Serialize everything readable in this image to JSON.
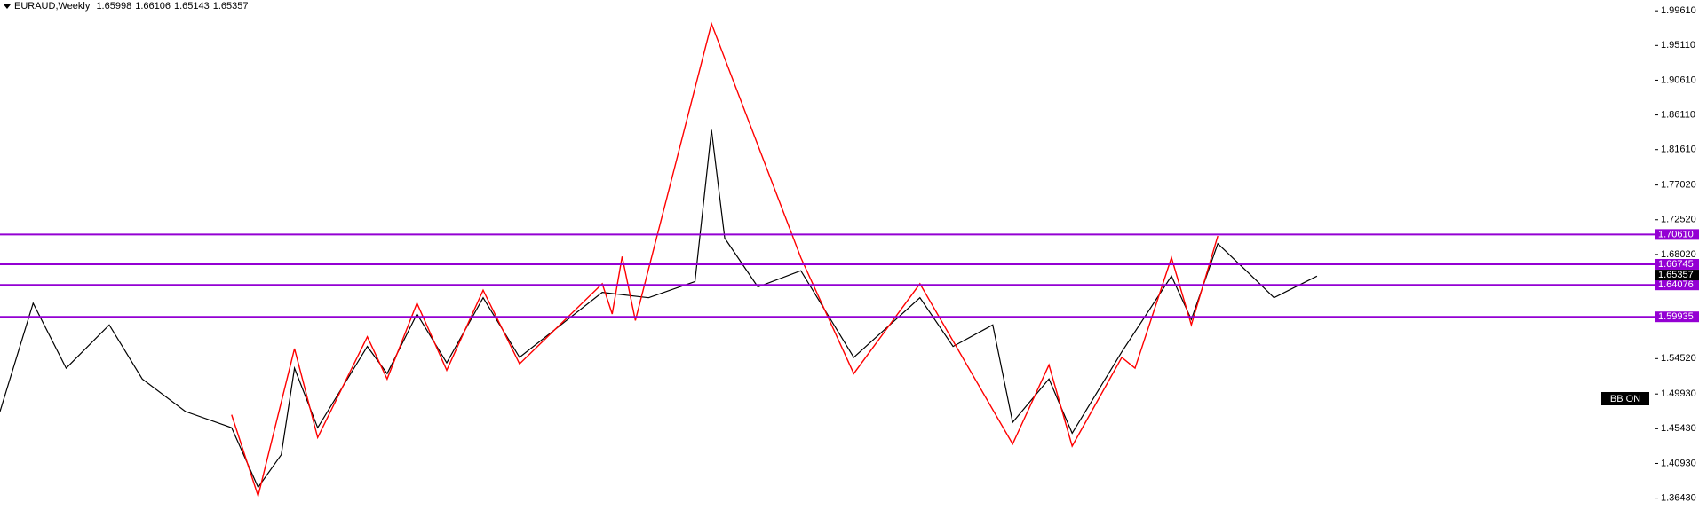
{
  "chart_data": {
    "type": "line",
    "title": "EURAUD,Weekly",
    "quote": {
      "open": 1.65998,
      "high": 1.66106,
      "low": 1.65143,
      "close": 1.65357
    },
    "indicator_label": "BB ON",
    "xlim": [
      0,
      500
    ],
    "ylim": [
      1.3489,
      2.0101
    ],
    "yticks": [
      {
        "value": 1.9961,
        "label": "1.99610"
      },
      {
        "value": 1.9511,
        "label": "1.95110"
      },
      {
        "value": 1.9061,
        "label": "1.90610"
      },
      {
        "value": 1.8611,
        "label": "1.86110"
      },
      {
        "value": 1.8161,
        "label": "1.81610"
      },
      {
        "value": 1.7702,
        "label": "1.77020"
      },
      {
        "value": 1.7252,
        "label": "1.72520"
      },
      {
        "value": 1.6802,
        "label": "1.68020"
      },
      {
        "value": 1.5452,
        "label": "1.54520"
      },
      {
        "value": 1.4993,
        "label": "1.49930"
      },
      {
        "value": 1.4543,
        "label": "1.45430"
      },
      {
        "value": 1.4093,
        "label": "1.40930"
      },
      {
        "value": 1.3643,
        "label": "1.36430"
      }
    ],
    "price_line": {
      "color": "#000000",
      "x": [
        0,
        10,
        20,
        33,
        43,
        56,
        70,
        78,
        85,
        89,
        96,
        111,
        117,
        126,
        135,
        146,
        157,
        182,
        196,
        210,
        215,
        219,
        229,
        242,
        258,
        278,
        288,
        300,
        306,
        317,
        324,
        339,
        354,
        360,
        368,
        380,
        385,
        398
      ],
      "values": [
        1.4766,
        1.6171,
        1.5328,
        1.5889,
        1.5187,
        1.4766,
        1.4556,
        1.3783,
        1.4205,
        1.5328,
        1.4556,
        1.5609,
        1.5258,
        1.603,
        1.5398,
        1.6241,
        1.5468,
        1.6311,
        1.6241,
        1.6451,
        1.8417,
        1.7013,
        1.6381,
        1.6591,
        1.5468,
        1.6241,
        1.5609,
        1.5889,
        1.4626,
        1.5187,
        1.4485,
        1.5539,
        1.6521,
        1.5959,
        1.6942,
        1.6451,
        1.6241,
        1.6521
      ]
    },
    "zigzag": {
      "color": "#ff0000",
      "x": [
        70,
        78,
        89,
        96,
        111,
        117,
        126,
        135,
        146,
        157,
        182,
        185,
        188,
        192,
        215,
        242,
        258,
        278,
        306,
        317,
        324,
        339,
        343,
        354,
        360,
        368
      ],
      "values": [
        1.4724,
        1.3671,
        1.5581,
        1.4429,
        1.5735,
        1.5187,
        1.6171,
        1.5301,
        1.6339,
        1.5384,
        1.6423,
        1.603,
        1.6774,
        1.5946,
        1.9793,
        1.676,
        1.5258,
        1.6423,
        1.4345,
        1.537,
        1.4317,
        1.5468,
        1.5328,
        1.676,
        1.5889,
        1.7041
      ]
    },
    "level_color": "#9400d3",
    "levels": [
      {
        "value": 1.7061,
        "label": "1.70610"
      },
      {
        "value": 1.66745,
        "label": "1.66745"
      },
      {
        "value": 1.64076,
        "label": "1.64076"
      },
      {
        "value": 1.59935,
        "label": "1.59935"
      }
    ]
  }
}
